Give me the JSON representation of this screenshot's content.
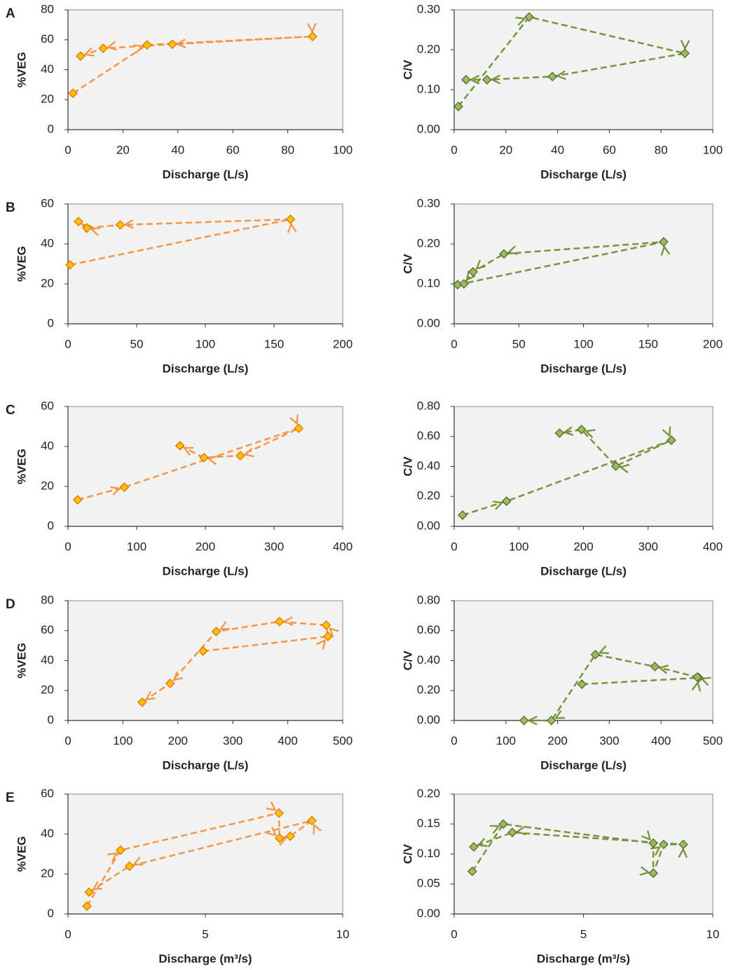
{
  "chart_data": [
    {
      "type": "line",
      "panel": "A",
      "xlabel": "Discharge (L/s)",
      "ylabel": "%VEG",
      "line_style": "dashed",
      "color": "#f79646",
      "marker_color": "#ffc000",
      "marker_edge": "#e46c0a",
      "x": [
        1.8,
        28.8,
        89,
        38,
        12.8,
        4.6
      ],
      "values": [
        24.3,
        56.6,
        62.2,
        57,
        54.3,
        49.1
      ],
      "xlim": [
        0,
        100
      ],
      "ylim": [
        0,
        80
      ],
      "xticks": [
        0,
        20,
        40,
        60,
        80,
        100
      ],
      "yticks": [
        0,
        20,
        40,
        60,
        80
      ]
    },
    {
      "type": "line",
      "xlabel": "Discharge (L/s)",
      "ylabel": "C/V",
      "line_style": "dashed",
      "color": "#77933c",
      "marker_color": "#9bbb59",
      "marker_edge": "#4f6228",
      "x": [
        1.6,
        29,
        89.2,
        38,
        12.7,
        4.6
      ],
      "values": [
        0.058,
        0.282,
        0.191,
        0.133,
        0.125,
        0.125
      ],
      "xlim": [
        0,
        100
      ],
      "ylim": [
        0,
        0.3
      ],
      "xticks": [
        0,
        20,
        40,
        60,
        80,
        100
      ],
      "yticks": [
        {
          "value": 0,
          "label": "0.00"
        },
        {
          "value": 0.1,
          "label": "0.10"
        },
        {
          "value": 0.2,
          "label": "0.20"
        },
        {
          "value": 0.3,
          "label": "0.30"
        }
      ]
    },
    {
      "type": "line",
      "panel": "B",
      "xlabel": "Discharge (L/s)",
      "ylabel": "%VEG",
      "line_style": "dashed",
      "color": "#f79646",
      "marker_color": "#ffc000",
      "marker_edge": "#e46c0a",
      "x": [
        1.5,
        162,
        38,
        13.8,
        7.7
      ],
      "values": [
        29.5,
        52.3,
        49.5,
        48,
        51.2
      ],
      "xlim": [
        0,
        200
      ],
      "ylim": [
        0,
        60
      ],
      "xticks": [
        0,
        50,
        100,
        150,
        200
      ],
      "yticks": [
        0,
        20,
        40,
        60
      ]
    },
    {
      "type": "line",
      "xlabel": "Discharge (L/s)",
      "ylabel": "C/V",
      "line_style": "dashed",
      "color": "#77933c",
      "marker_color": "#9bbb59",
      "marker_edge": "#4f6228",
      "x": [
        2.7,
        162,
        38.5,
        14.6,
        7.6
      ],
      "values": [
        0.098,
        0.205,
        0.175,
        0.13,
        0.1
      ],
      "xlim": [
        0,
        200
      ],
      "ylim": [
        0,
        0.3
      ],
      "xticks": [
        0,
        50,
        100,
        150,
        200
      ],
      "yticks": [
        {
          "value": 0,
          "label": "0.00"
        },
        {
          "value": 0.1,
          "label": "0.10"
        },
        {
          "value": 0.2,
          "label": "0.20"
        },
        {
          "value": 0.3,
          "label": "0.30"
        }
      ]
    },
    {
      "type": "line",
      "panel": "C",
      "xlabel": "Discharge (L/s)",
      "ylabel": "%VEG",
      "line_style": "dashed",
      "color": "#f79646",
      "marker_color": "#ffc000",
      "marker_edge": "#e46c0a",
      "x": [
        14,
        82,
        336,
        251,
        198,
        163
      ],
      "values": [
        13.3,
        19.6,
        49.1,
        35.4,
        34.4,
        40.4
      ],
      "xlim": [
        0,
        400
      ],
      "ylim": [
        0,
        60
      ],
      "xticks": [
        0,
        100,
        200,
        300,
        400
      ],
      "yticks": [
        0,
        20,
        40,
        60
      ]
    },
    {
      "type": "line",
      "xlabel": "Discharge (L/s)",
      "ylabel": "C/V",
      "line_style": "dashed",
      "color": "#77933c",
      "marker_color": "#9bbb59",
      "marker_edge": "#4f6228",
      "x": [
        13,
        81,
        336,
        250,
        197,
        163
      ],
      "values": [
        0.075,
        0.168,
        0.575,
        0.402,
        0.646,
        0.622
      ],
      "xlim": [
        0,
        400
      ],
      "ylim": [
        0,
        0.8
      ],
      "xticks": [
        0,
        100,
        200,
        300,
        400
      ],
      "yticks": [
        {
          "value": 0,
          "label": "0.00"
        },
        {
          "value": 0.2,
          "label": "0.20"
        },
        {
          "value": 0.4,
          "label": "0.40"
        },
        {
          "value": 0.6,
          "label": "0.60"
        },
        {
          "value": 0.8,
          "label": "0.80"
        }
      ]
    },
    {
      "type": "line",
      "panel": "D",
      "xlabel": "Discharge (L/s)",
      "ylabel": "%VEG",
      "line_style": "dashed",
      "color": "#f79646",
      "marker_color": "#ffc000",
      "marker_edge": "#e46c0a",
      "x": [
        246,
        473,
        470,
        385,
        270,
        186,
        135
      ],
      "values": [
        46.3,
        56.1,
        63.6,
        66,
        59.4,
        24.8,
        12.2
      ],
      "xlim": [
        0,
        500
      ],
      "ylim": [
        0,
        80
      ],
      "xticks": [
        0,
        100,
        200,
        300,
        400,
        500
      ],
      "yticks": [
        0,
        20,
        40,
        60,
        80
      ]
    },
    {
      "type": "line",
      "xlabel": "Discharge (L/s)",
      "ylabel": "C/V",
      "line_style": "dashed",
      "color": "#77933c",
      "marker_color": "#9bbb59",
      "marker_edge": "#4f6228",
      "x": [
        247,
        473,
        470,
        388,
        273,
        188,
        135
      ],
      "values": [
        0.242,
        0.285,
        0.29,
        0.36,
        0.44,
        0,
        0
      ],
      "xlim": [
        0,
        500
      ],
      "ylim": [
        0,
        0.8
      ],
      "xticks": [
        0,
        100,
        200,
        300,
        400,
        500
      ],
      "yticks": [
        {
          "value": 0,
          "label": "0.00"
        },
        {
          "value": 0.2,
          "label": "0.20"
        },
        {
          "value": 0.4,
          "label": "0.40"
        },
        {
          "value": 0.6,
          "label": "0.60"
        },
        {
          "value": 0.8,
          "label": "0.80"
        }
      ]
    },
    {
      "type": "line",
      "panel": "E",
      "xlabel": "Discharge (m³/s)",
      "ylabel": "%VEG",
      "line_style": "dashed",
      "color": "#f79646",
      "marker_color": "#ffc000",
      "marker_edge": "#e46c0a",
      "x": [
        0.69,
        1.91,
        7.68,
        7.7,
        8.09,
        8.88,
        2.24,
        0.77
      ],
      "values": [
        3.9,
        31.9,
        50.5,
        37.9,
        38.9,
        46.7,
        23.9,
        10.9
      ],
      "xlim": [
        0,
        10
      ],
      "ylim": [
        0,
        60
      ],
      "xticks": [
        0,
        5,
        10
      ],
      "yticks": [
        0,
        20,
        40,
        60
      ]
    },
    {
      "type": "line",
      "xlabel": "Discharge (m³/s)",
      "ylabel": "C/V",
      "line_style": "dashed",
      "color": "#77933c",
      "marker_color": "#9bbb59",
      "marker_edge": "#4f6228",
      "x": [
        0.7,
        1.9,
        7.7,
        7.7,
        8.1,
        8.86,
        2.25,
        0.76
      ],
      "values": [
        0.071,
        0.15,
        0.118,
        0.068,
        0.116,
        0.116,
        0.136,
        0.112
      ],
      "xlim": [
        0,
        10
      ],
      "ylim": [
        0,
        0.2
      ],
      "xticks": [
        0,
        5,
        10
      ],
      "yticks": [
        {
          "value": 0,
          "label": "0.00"
        },
        {
          "value": 0.05,
          "label": "0.05"
        },
        {
          "value": 0.1,
          "label": "0.10"
        },
        {
          "value": 0.15,
          "label": "0.15"
        },
        {
          "value": 0.2,
          "label": "0.20"
        }
      ]
    }
  ]
}
